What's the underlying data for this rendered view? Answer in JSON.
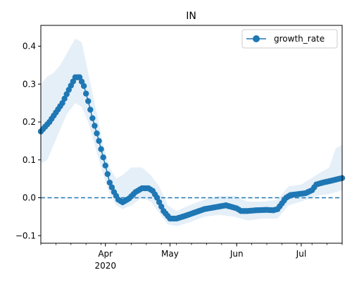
{
  "chart_data": {
    "type": "line",
    "title": "IN",
    "xlabel": "",
    "ylabel": "",
    "x_range": [
      "2020-03-02",
      "2020-07-20"
    ],
    "ylim": [
      -0.12,
      0.455
    ],
    "yticks": [
      -0.1,
      0.0,
      0.1,
      0.2,
      0.3,
      0.4
    ],
    "ytick_labels": [
      "−0.1",
      "0.0",
      "0.1",
      "0.2",
      "0.3",
      "0.4"
    ],
    "xticks": [
      {
        "date": "2020-04-01",
        "label": "Apr",
        "sublabel": "2020"
      },
      {
        "date": "2020-05-01",
        "label": "May",
        "sublabel": ""
      },
      {
        "date": "2020-06-01",
        "label": "Jun",
        "sublabel": ""
      },
      {
        "date": "2020-07-01",
        "label": "Jul",
        "sublabel": ""
      }
    ],
    "reference_line": {
      "y": 0.0,
      "style": "dashed",
      "color": "#1f77b4"
    },
    "legend": {
      "position": "top-right",
      "entries": [
        "growth_rate"
      ]
    },
    "colors": {
      "series": "#1f77b4",
      "band": "#dce9f5"
    },
    "series": [
      {
        "name": "growth_rate",
        "marker": "circle",
        "key_points": [
          {
            "x": "2020-03-02",
            "y": 0.175
          },
          {
            "x": "2020-03-06",
            "y": 0.2
          },
          {
            "x": "2020-03-09",
            "y": 0.225
          },
          {
            "x": "2020-03-12",
            "y": 0.25
          },
          {
            "x": "2020-03-15",
            "y": 0.285
          },
          {
            "x": "2020-03-18",
            "y": 0.318
          },
          {
            "x": "2020-03-20",
            "y": 0.318
          },
          {
            "x": "2020-03-22",
            "y": 0.295
          },
          {
            "x": "2020-03-24",
            "y": 0.255
          },
          {
            "x": "2020-03-26",
            "y": 0.21
          },
          {
            "x": "2020-03-29",
            "y": 0.15
          },
          {
            "x": "2020-04-01",
            "y": 0.085
          },
          {
            "x": "2020-04-03",
            "y": 0.04
          },
          {
            "x": "2020-04-05",
            "y": 0.015
          },
          {
            "x": "2020-04-07",
            "y": -0.005
          },
          {
            "x": "2020-04-09",
            "y": -0.012
          },
          {
            "x": "2020-04-12",
            "y": -0.002
          },
          {
            "x": "2020-04-15",
            "y": 0.015
          },
          {
            "x": "2020-04-18",
            "y": 0.025
          },
          {
            "x": "2020-04-21",
            "y": 0.025
          },
          {
            "x": "2020-04-23",
            "y": 0.018
          },
          {
            "x": "2020-04-25",
            "y": 0.0
          },
          {
            "x": "2020-04-28",
            "y": -0.035
          },
          {
            "x": "2020-05-01",
            "y": -0.055
          },
          {
            "x": "2020-05-04",
            "y": -0.055
          },
          {
            "x": "2020-05-08",
            "y": -0.048
          },
          {
            "x": "2020-05-12",
            "y": -0.04
          },
          {
            "x": "2020-05-17",
            "y": -0.03
          },
          {
            "x": "2020-05-22",
            "y": -0.025
          },
          {
            "x": "2020-05-27",
            "y": -0.02
          },
          {
            "x": "2020-06-01",
            "y": -0.028
          },
          {
            "x": "2020-06-03",
            "y": -0.035
          },
          {
            "x": "2020-06-06",
            "y": -0.035
          },
          {
            "x": "2020-06-10",
            "y": -0.033
          },
          {
            "x": "2020-06-15",
            "y": -0.032
          },
          {
            "x": "2020-06-18",
            "y": -0.033
          },
          {
            "x": "2020-06-20",
            "y": -0.03
          },
          {
            "x": "2020-06-22",
            "y": -0.015
          },
          {
            "x": "2020-06-24",
            "y": 0.0
          },
          {
            "x": "2020-06-26",
            "y": 0.007
          },
          {
            "x": "2020-06-30",
            "y": 0.01
          },
          {
            "x": "2020-07-03",
            "y": 0.012
          },
          {
            "x": "2020-07-06",
            "y": 0.02
          },
          {
            "x": "2020-07-08",
            "y": 0.035
          },
          {
            "x": "2020-07-11",
            "y": 0.04
          },
          {
            "x": "2020-07-15",
            "y": 0.045
          },
          {
            "x": "2020-07-20",
            "y": 0.052
          }
        ],
        "band": [
          {
            "x": "2020-03-02",
            "lower": 0.09,
            "upper": 0.3
          },
          {
            "x": "2020-03-05",
            "lower": 0.1,
            "upper": 0.32
          },
          {
            "x": "2020-03-08",
            "lower": 0.14,
            "upper": 0.33
          },
          {
            "x": "2020-03-11",
            "lower": 0.18,
            "upper": 0.35
          },
          {
            "x": "2020-03-14",
            "lower": 0.22,
            "upper": 0.38
          },
          {
            "x": "2020-03-18",
            "lower": 0.25,
            "upper": 0.42
          },
          {
            "x": "2020-03-21",
            "lower": 0.24,
            "upper": 0.41
          },
          {
            "x": "2020-03-24",
            "lower": 0.2,
            "upper": 0.33
          },
          {
            "x": "2020-03-27",
            "lower": 0.14,
            "upper": 0.25
          },
          {
            "x": "2020-03-31",
            "lower": 0.06,
            "upper": 0.14
          },
          {
            "x": "2020-04-03",
            "lower": 0.01,
            "upper": 0.08
          },
          {
            "x": "2020-04-06",
            "lower": -0.02,
            "upper": 0.05
          },
          {
            "x": "2020-04-09",
            "lower": -0.03,
            "upper": 0.06
          },
          {
            "x": "2020-04-13",
            "lower": -0.02,
            "upper": 0.08
          },
          {
            "x": "2020-04-18",
            "lower": 0.0,
            "upper": 0.08
          },
          {
            "x": "2020-04-22",
            "lower": -0.01,
            "upper": 0.06
          },
          {
            "x": "2020-04-26",
            "lower": -0.04,
            "upper": 0.03
          },
          {
            "x": "2020-04-30",
            "lower": -0.07,
            "upper": -0.02
          },
          {
            "x": "2020-05-04",
            "lower": -0.075,
            "upper": -0.035
          },
          {
            "x": "2020-05-10",
            "lower": -0.065,
            "upper": -0.02
          },
          {
            "x": "2020-05-17",
            "lower": -0.05,
            "upper": -0.005
          },
          {
            "x": "2020-05-24",
            "lower": -0.045,
            "upper": 0.005
          },
          {
            "x": "2020-05-31",
            "lower": -0.05,
            "upper": 0.005
          },
          {
            "x": "2020-06-06",
            "lower": -0.06,
            "upper": -0.01
          },
          {
            "x": "2020-06-13",
            "lower": -0.055,
            "upper": -0.01
          },
          {
            "x": "2020-06-20",
            "lower": -0.055,
            "upper": -0.005
          },
          {
            "x": "2020-06-25",
            "lower": -0.02,
            "upper": 0.03
          },
          {
            "x": "2020-07-01",
            "lower": -0.01,
            "upper": 0.035
          },
          {
            "x": "2020-07-08",
            "lower": 0.005,
            "upper": 0.06
          },
          {
            "x": "2020-07-14",
            "lower": 0.01,
            "upper": 0.08
          },
          {
            "x": "2020-07-17",
            "lower": 0.015,
            "upper": 0.13
          },
          {
            "x": "2020-07-20",
            "lower": 0.02,
            "upper": 0.14
          }
        ]
      }
    ]
  }
}
